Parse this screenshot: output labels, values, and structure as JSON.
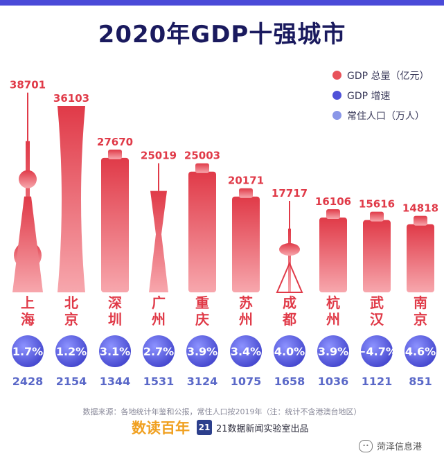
{
  "title": "2020年GDP十强城市",
  "legend": [
    {
      "label": "GDP 总量（亿元）",
      "color": "#e8525a"
    },
    {
      "label": "GDP 增速",
      "color": "#4f52d8"
    },
    {
      "label": "常住人口（万人）",
      "color": "#8a97e8"
    }
  ],
  "chart_data": {
    "type": "bar",
    "categories": [
      "上海",
      "北京",
      "深圳",
      "广州",
      "重庆",
      "苏州",
      "成都",
      "杭州",
      "武汉",
      "南京"
    ],
    "series": [
      {
        "name": "GDP 总量（亿元）",
        "values": [
          38701,
          36103,
          27670,
          25019,
          25003,
          20171,
          17717,
          16106,
          15616,
          14818
        ]
      },
      {
        "name": "GDP 增速",
        "values": [
          1.7,
          1.2,
          3.1,
          2.7,
          3.9,
          3.4,
          4.0,
          3.9,
          -4.7,
          4.6
        ],
        "labels": [
          "1.7%",
          "1.2%",
          "3.1%",
          "2.7%",
          "3.9%",
          "3.4%",
          "4.0%",
          "3.9%",
          "−4.7%",
          "4.6%"
        ]
      },
      {
        "name": "常住人口（万人）",
        "values": [
          2428,
          2154,
          1344,
          1531,
          3124,
          1075,
          1658,
          1036,
          1121,
          851
        ]
      }
    ],
    "bar_icons": [
      "oriental-pearl-tower",
      "china-zun-tower",
      "ping-an-finance-center",
      "canton-tower",
      "chongqing-world-financial-center",
      "suzhou-center",
      "tianfu-panda-tower",
      "raffles-city-hangzhou",
      "wuhan-center",
      "zifeng-tower"
    ]
  },
  "source": "数据来源：各地统计年鉴和公报，常住人口按2019年（注：统计不含港澳台地区）",
  "footer": {
    "brand": "数读百年",
    "badge": "21",
    "publisher": "21数据新闻实验室出品"
  },
  "watermark": "菏泽信息港"
}
